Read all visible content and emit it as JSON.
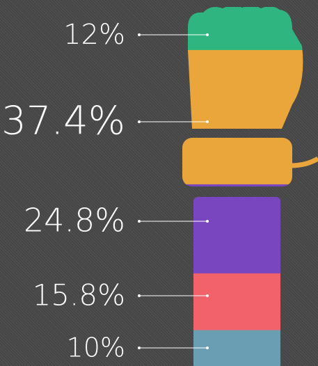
{
  "chart_data": {
    "type": "pictorial",
    "categories": [
      null,
      null,
      null,
      null,
      null
    ],
    "values": [
      12,
      37.4,
      24.8,
      15.8,
      10
    ],
    "value_labels": [
      "12%",
      "37.4%",
      "24.8%",
      "15.8%",
      "10%"
    ],
    "colors": [
      "#2fb57f",
      "#eaa63a",
      "#7a46c0",
      "#f2626a",
      "#6a9eb3"
    ]
  }
}
